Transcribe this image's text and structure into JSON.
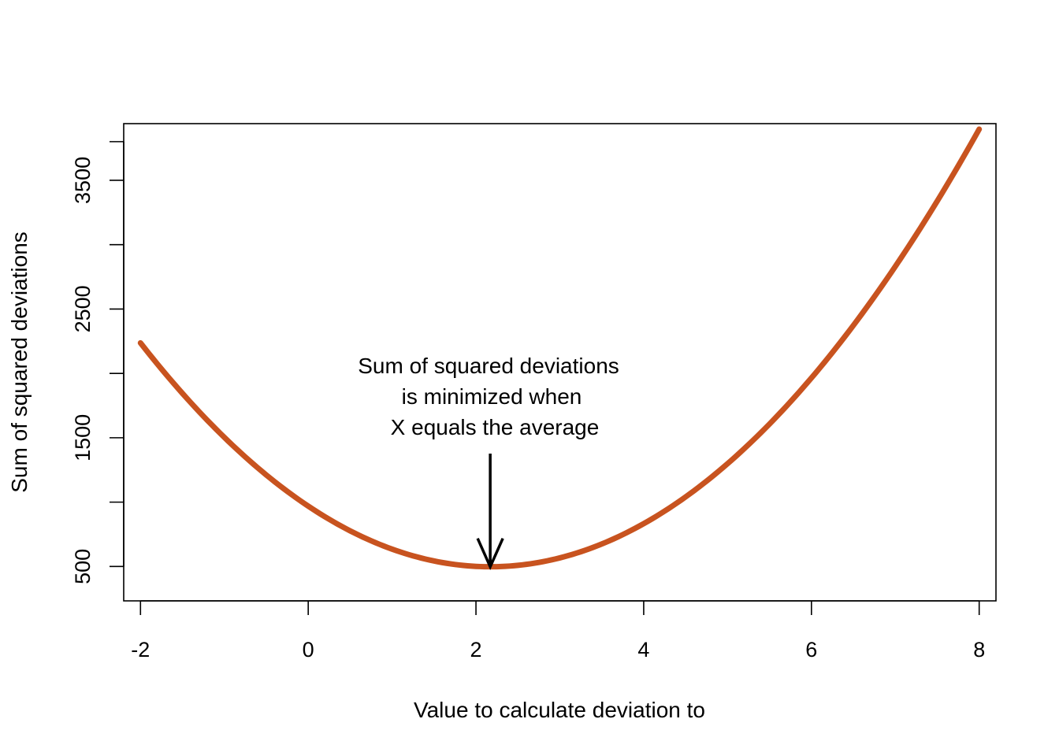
{
  "chart_data": {
    "type": "line",
    "title": "",
    "xlabel": "Value to calculate deviation to",
    "ylabel": "Sum of squared deviations",
    "xlim": [
      -2.2,
      8.2
    ],
    "ylim": [
      233,
      3940
    ],
    "xticks": [
      -2,
      0,
      2,
      4,
      6,
      8
    ],
    "yticks": [
      500,
      1000,
      1500,
      2000,
      2500,
      3000,
      3500,
      3800
    ],
    "ytick_labels": [
      "500",
      "",
      "1500",
      "",
      "2500",
      "",
      "3500",
      ""
    ],
    "grid": false,
    "legend": "none",
    "series": [
      {
        "color": "#c8531f",
        "curve": {
          "n": 100,
          "mean": 2.17,
          "min_value": 498
        },
        "x_range": [
          -2,
          8
        ]
      }
    ],
    "annotation": {
      "lines": [
        "Sum of squared deviations",
        "is minimized when",
        "X equals the average"
      ],
      "arrow_x": 2.17,
      "arrow_from_y": 1500,
      "arrow_to_y": 498
    }
  }
}
